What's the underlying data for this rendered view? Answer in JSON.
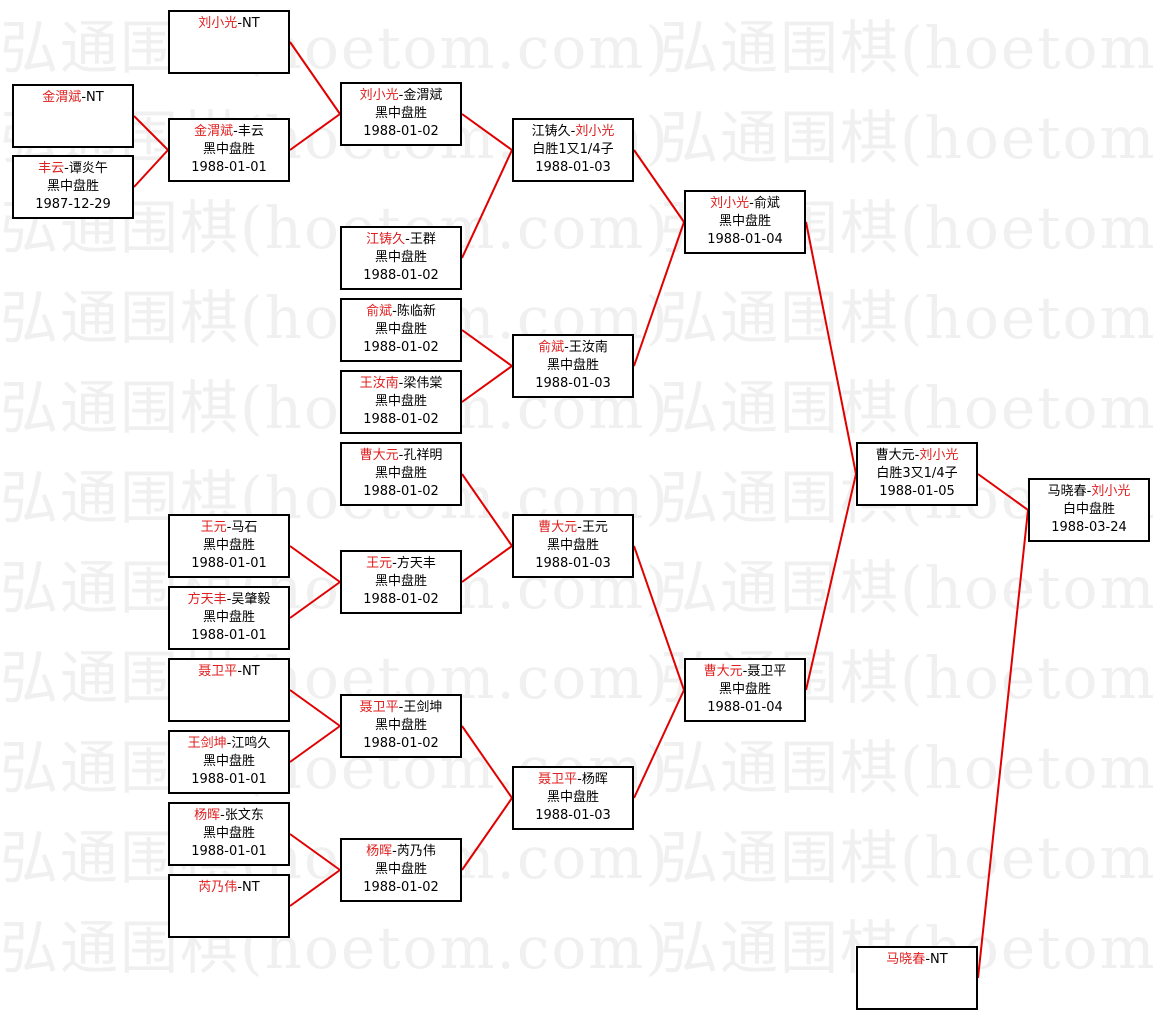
{
  "watermark": "弘通围棋(hoetom.com)",
  "colors": {
    "winner": "#e02020",
    "line": "#e00000",
    "border": "#000000"
  },
  "matches": [
    {
      "id": "m0",
      "p1": "金渭斌",
      "p2": "NT",
      "red": 1,
      "result": "",
      "date": ""
    },
    {
      "id": "m1",
      "p1": "丰云",
      "p2": "谭炎午",
      "red": 1,
      "result": "黑中盘胜",
      "date": "1987-12-29"
    },
    {
      "id": "m2",
      "p1": "刘小光",
      "p2": "NT",
      "red": 1,
      "result": "",
      "date": ""
    },
    {
      "id": "m3",
      "p1": "金渭斌",
      "p2": "丰云",
      "red": 1,
      "result": "黑中盘胜",
      "date": "1988-01-01"
    },
    {
      "id": "m4",
      "p1": "王元",
      "p2": "马石",
      "red": 1,
      "result": "黑中盘胜",
      "date": "1988-01-01"
    },
    {
      "id": "m5",
      "p1": "方天丰",
      "p2": "吴肇毅",
      "red": 1,
      "result": "黑中盘胜",
      "date": "1988-01-01"
    },
    {
      "id": "m6",
      "p1": "聂卫平",
      "p2": "NT",
      "red": 1,
      "result": "",
      "date": ""
    },
    {
      "id": "m7",
      "p1": "王剑坤",
      "p2": "江鸣久",
      "red": 1,
      "result": "黑中盘胜",
      "date": "1988-01-01"
    },
    {
      "id": "m8",
      "p1": "杨晖",
      "p2": "张文东",
      "red": 1,
      "result": "黑中盘胜",
      "date": "1988-01-01"
    },
    {
      "id": "m9",
      "p1": "芮乃伟",
      "p2": "NT",
      "red": 1,
      "result": "",
      "date": ""
    },
    {
      "id": "m10",
      "p1": "刘小光",
      "p2": "金渭斌",
      "red": 1,
      "result": "黑中盘胜",
      "date": "1988-01-02"
    },
    {
      "id": "m11",
      "p1": "江铸久",
      "p2": "王群",
      "red": 1,
      "result": "黑中盘胜",
      "date": "1988-01-02"
    },
    {
      "id": "m12",
      "p1": "俞斌",
      "p2": "陈临新",
      "red": 1,
      "result": "黑中盘胜",
      "date": "1988-01-02"
    },
    {
      "id": "m13",
      "p1": "王汝南",
      "p2": "梁伟棠",
      "red": 1,
      "result": "黑中盘胜",
      "date": "1988-01-02"
    },
    {
      "id": "m14",
      "p1": "曹大元",
      "p2": "孔祥明",
      "red": 1,
      "result": "黑中盘胜",
      "date": "1988-01-02"
    },
    {
      "id": "m15",
      "p1": "王元",
      "p2": "方天丰",
      "red": 1,
      "result": "黑中盘胜",
      "date": "1988-01-02"
    },
    {
      "id": "m16",
      "p1": "聂卫平",
      "p2": "王剑坤",
      "red": 1,
      "result": "黑中盘胜",
      "date": "1988-01-02"
    },
    {
      "id": "m17",
      "p1": "杨晖",
      "p2": "芮乃伟",
      "red": 1,
      "result": "黑中盘胜",
      "date": "1988-01-02"
    },
    {
      "id": "m18",
      "p1": "江铸久",
      "p2": "刘小光",
      "red": 2,
      "result": "白胜1又1/4子",
      "date": "1988-01-03"
    },
    {
      "id": "m19",
      "p1": "俞斌",
      "p2": "王汝南",
      "red": 1,
      "result": "黑中盘胜",
      "date": "1988-01-03"
    },
    {
      "id": "m20",
      "p1": "曹大元",
      "p2": "王元",
      "red": 1,
      "result": "黑中盘胜",
      "date": "1988-01-03"
    },
    {
      "id": "m21",
      "p1": "聂卫平",
      "p2": "杨晖",
      "red": 1,
      "result": "黑中盘胜",
      "date": "1988-01-03"
    },
    {
      "id": "m22",
      "p1": "刘小光",
      "p2": "俞斌",
      "red": 1,
      "result": "黑中盘胜",
      "date": "1988-01-04"
    },
    {
      "id": "m23",
      "p1": "曹大元",
      "p2": "聂卫平",
      "red": 1,
      "result": "黑中盘胜",
      "date": "1988-01-04"
    },
    {
      "id": "m24",
      "p1": "曹大元",
      "p2": "刘小光",
      "red": 2,
      "result": "白胜3又1/4子",
      "date": "1988-01-05"
    },
    {
      "id": "m25",
      "p1": "马晓春",
      "p2": "NT",
      "red": 1,
      "result": "",
      "date": ""
    },
    {
      "id": "m26",
      "p1": "马晓春",
      "p2": "刘小光",
      "red": 2,
      "result": "白中盘胜",
      "date": "1988-03-24"
    }
  ]
}
